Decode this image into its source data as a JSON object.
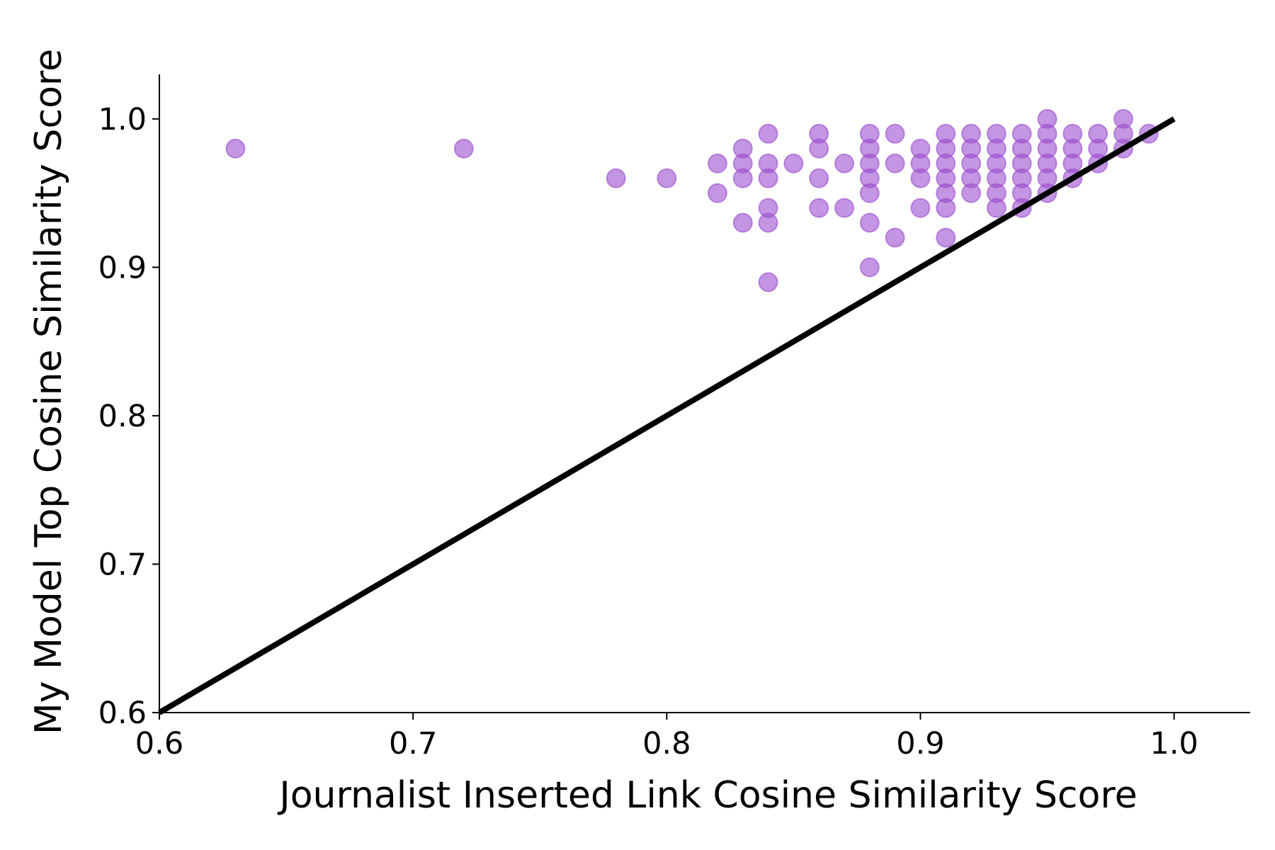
{
  "chart_data": {
    "type": "scatter",
    "title": "",
    "xlabel": "Journalist Inserted Link Cosine Similarity Score",
    "ylabel": "My Model Top Cosine Similarity Score",
    "xlim": [
      0.6,
      1.03
    ],
    "ylim": [
      0.6,
      1.03
    ],
    "x_ticks": [
      "0.6",
      "0.7",
      "0.8",
      "0.9",
      "1.0"
    ],
    "y_ticks": [
      "0.6",
      "0.7",
      "0.8",
      "0.9",
      "1.0"
    ],
    "grid": false,
    "legend": "none",
    "reference_line": {
      "from": [
        0.6,
        0.6
      ],
      "to": [
        1.0,
        1.0
      ],
      "color": "#000000"
    },
    "point_color": "#9b4fcf",
    "points": [
      [
        0.63,
        0.98
      ],
      [
        0.72,
        0.98
      ],
      [
        0.78,
        0.96
      ],
      [
        0.8,
        0.96
      ],
      [
        0.82,
        0.97
      ],
      [
        0.82,
        0.95
      ],
      [
        0.83,
        0.98
      ],
      [
        0.83,
        0.97
      ],
      [
        0.83,
        0.96
      ],
      [
        0.83,
        0.93
      ],
      [
        0.84,
        0.99
      ],
      [
        0.84,
        0.97
      ],
      [
        0.84,
        0.96
      ],
      [
        0.84,
        0.94
      ],
      [
        0.84,
        0.93
      ],
      [
        0.84,
        0.89
      ],
      [
        0.85,
        0.97
      ],
      [
        0.86,
        0.99
      ],
      [
        0.86,
        0.98
      ],
      [
        0.86,
        0.96
      ],
      [
        0.86,
        0.94
      ],
      [
        0.87,
        0.97
      ],
      [
        0.87,
        0.94
      ],
      [
        0.88,
        0.99
      ],
      [
        0.88,
        0.98
      ],
      [
        0.88,
        0.97
      ],
      [
        0.88,
        0.96
      ],
      [
        0.88,
        0.95
      ],
      [
        0.88,
        0.93
      ],
      [
        0.88,
        0.9
      ],
      [
        0.89,
        0.99
      ],
      [
        0.89,
        0.97
      ],
      [
        0.89,
        0.92
      ],
      [
        0.9,
        0.98
      ],
      [
        0.9,
        0.97
      ],
      [
        0.9,
        0.96
      ],
      [
        0.9,
        0.94
      ],
      [
        0.91,
        0.99
      ],
      [
        0.91,
        0.98
      ],
      [
        0.91,
        0.97
      ],
      [
        0.91,
        0.96
      ],
      [
        0.91,
        0.95
      ],
      [
        0.91,
        0.94
      ],
      [
        0.91,
        0.92
      ],
      [
        0.92,
        0.99
      ],
      [
        0.92,
        0.98
      ],
      [
        0.92,
        0.97
      ],
      [
        0.92,
        0.96
      ],
      [
        0.92,
        0.95
      ],
      [
        0.93,
        0.99
      ],
      [
        0.93,
        0.98
      ],
      [
        0.93,
        0.97
      ],
      [
        0.93,
        0.96
      ],
      [
        0.93,
        0.95
      ],
      [
        0.93,
        0.94
      ],
      [
        0.94,
        0.99
      ],
      [
        0.94,
        0.98
      ],
      [
        0.94,
        0.97
      ],
      [
        0.94,
        0.96
      ],
      [
        0.94,
        0.95
      ],
      [
        0.94,
        0.94
      ],
      [
        0.95,
        1.0
      ],
      [
        0.95,
        0.99
      ],
      [
        0.95,
        0.98
      ],
      [
        0.95,
        0.97
      ],
      [
        0.95,
        0.96
      ],
      [
        0.95,
        0.95
      ],
      [
        0.96,
        0.99
      ],
      [
        0.96,
        0.98
      ],
      [
        0.96,
        0.97
      ],
      [
        0.96,
        0.96
      ],
      [
        0.97,
        0.99
      ],
      [
        0.97,
        0.98
      ],
      [
        0.97,
        0.97
      ],
      [
        0.98,
        1.0
      ],
      [
        0.98,
        0.99
      ],
      [
        0.98,
        0.98
      ],
      [
        0.99,
        0.99
      ]
    ]
  }
}
